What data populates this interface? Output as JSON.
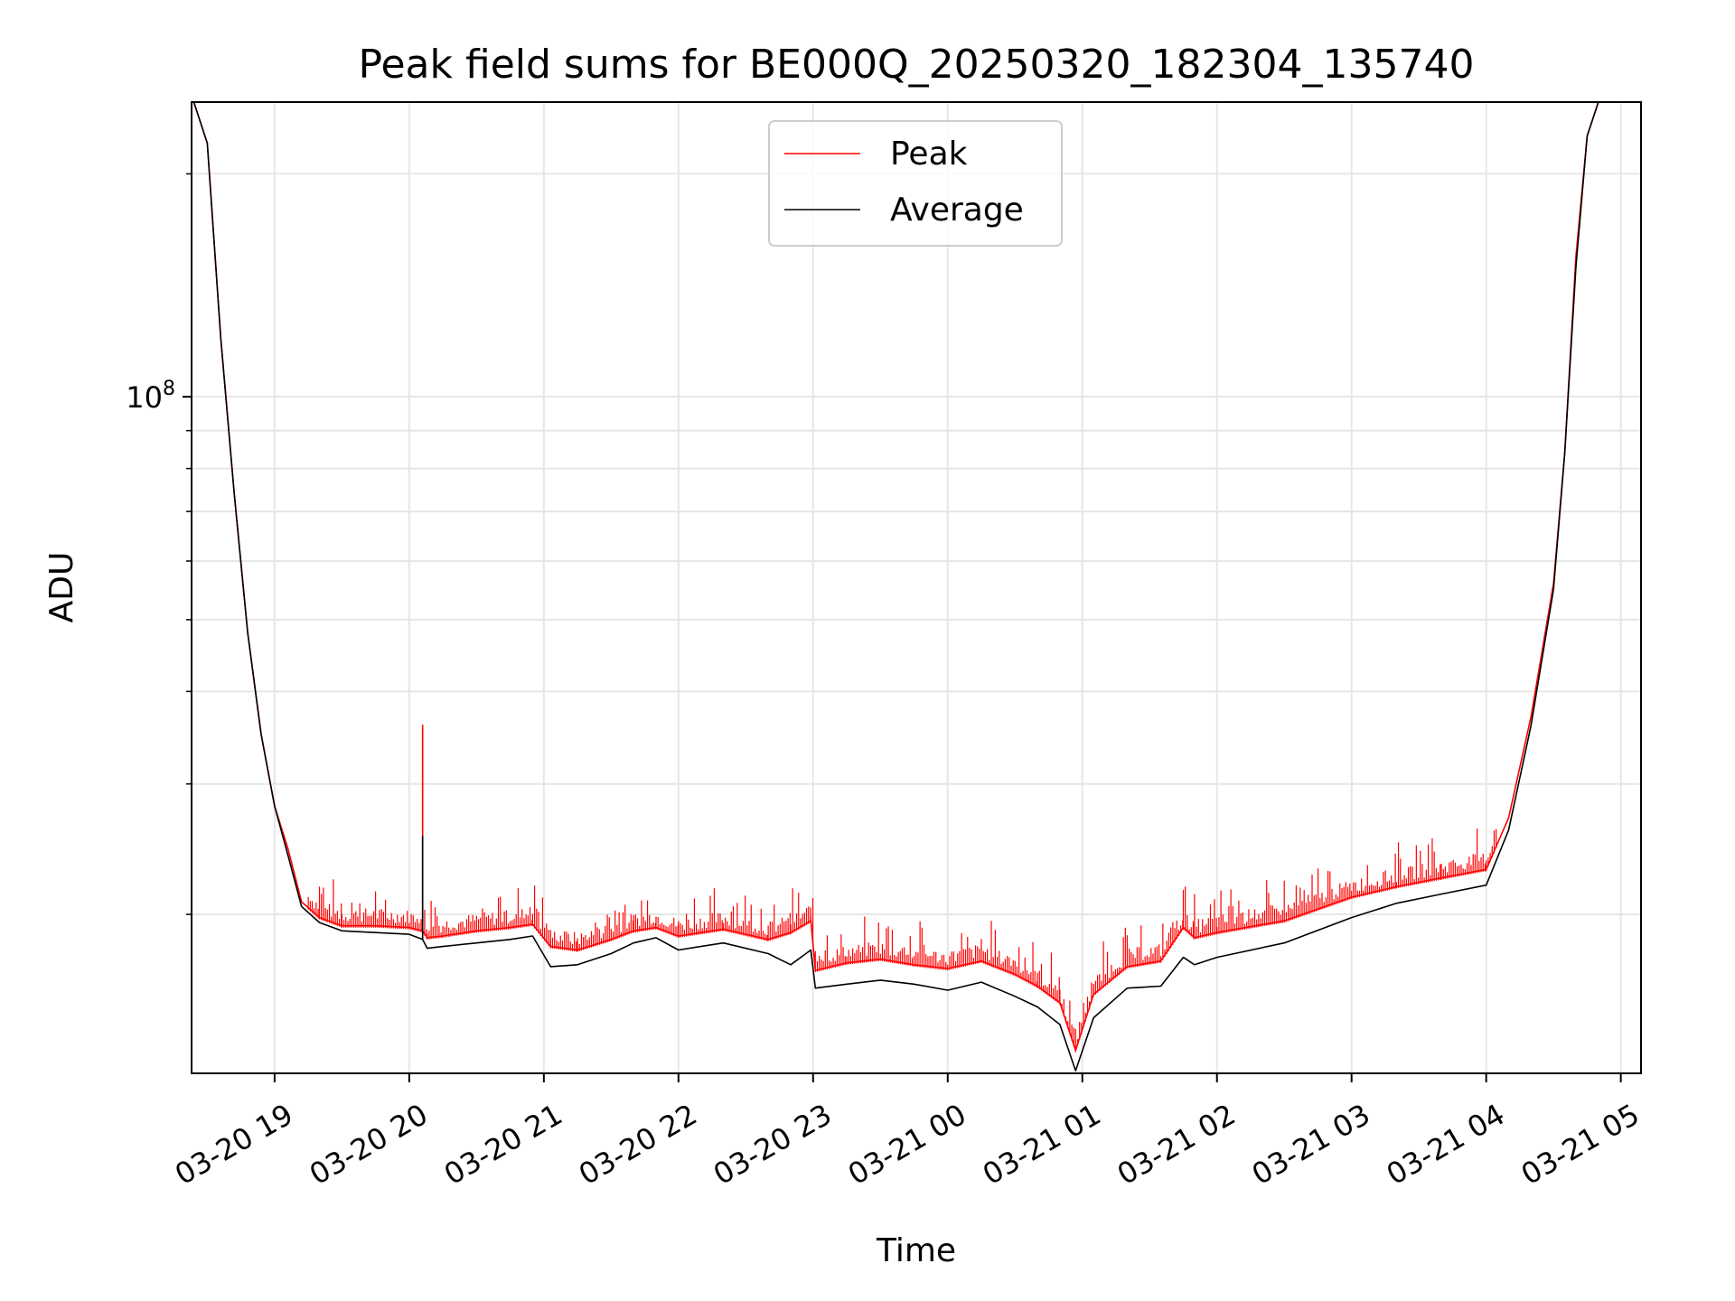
{
  "chart_data": {
    "type": "line",
    "title": "Peak field sums for BE000Q_20250320_182304_135740",
    "xlabel": "Time",
    "ylabel": "ADU",
    "yscale": "log",
    "grid": true,
    "legend_position": "top-center",
    "xlim": [
      "2025-03-20 18:23",
      "2025-03-21 05:09"
    ],
    "ylim": [
      12200000,
      250000000
    ],
    "x_ticks": [
      {
        "value": "2025-03-20 19:00",
        "label": "03-20 19"
      },
      {
        "value": "2025-03-20 20:00",
        "label": "03-20 20"
      },
      {
        "value": "2025-03-20 21:00",
        "label": "03-20 21"
      },
      {
        "value": "2025-03-20 22:00",
        "label": "03-20 22"
      },
      {
        "value": "2025-03-20 23:00",
        "label": "03-20 23"
      },
      {
        "value": "2025-03-21 00:00",
        "label": "03-21 00"
      },
      {
        "value": "2025-03-21 01:00",
        "label": "03-21 01"
      },
      {
        "value": "2025-03-21 02:00",
        "label": "03-21 02"
      },
      {
        "value": "2025-03-21 03:00",
        "label": "03-21 03"
      },
      {
        "value": "2025-03-21 04:00",
        "label": "03-21 04"
      },
      {
        "value": "2025-03-21 05:00",
        "label": "03-21 05"
      }
    ],
    "y_major_ticks": [
      {
        "value": 100000000,
        "base": "10",
        "exponent": "8"
      }
    ],
    "y_minor_ticks": [
      20000000,
      30000000,
      40000000,
      50000000,
      60000000,
      70000000,
      80000000,
      90000000,
      200000000
    ],
    "series": [
      {
        "name": "Peak",
        "color": "#ff0000",
        "noisy_spikes": true,
        "x": [
          "2025-03-20 18:24",
          "2025-03-20 18:30",
          "2025-03-20 18:36",
          "2025-03-20 18:42",
          "2025-03-20 18:48",
          "2025-03-20 18:54",
          "2025-03-20 19:00",
          "2025-03-20 19:06",
          "2025-03-20 19:12",
          "2025-03-20 19:20",
          "2025-03-20 19:30",
          "2025-03-20 19:45",
          "2025-03-20 20:00",
          "2025-03-20 20:06",
          "2025-03-20 20:06",
          "2025-03-20 20:06",
          "2025-03-20 20:08",
          "2025-03-20 20:15",
          "2025-03-20 20:30",
          "2025-03-20 20:45",
          "2025-03-20 20:55",
          "2025-03-20 21:03",
          "2025-03-20 21:15",
          "2025-03-20 21:30",
          "2025-03-20 21:40",
          "2025-03-20 21:50",
          "2025-03-20 22:00",
          "2025-03-20 22:20",
          "2025-03-20 22:40",
          "2025-03-20 22:50",
          "2025-03-20 22:59",
          "2025-03-20 23:01",
          "2025-03-20 23:15",
          "2025-03-20 23:30",
          "2025-03-20 23:45",
          "2025-03-21 00:00",
          "2025-03-21 00:15",
          "2025-03-21 00:30",
          "2025-03-21 00:40",
          "2025-03-21 00:50",
          "2025-03-21 00:57",
          "2025-03-21 01:05",
          "2025-03-21 01:20",
          "2025-03-21 01:35",
          "2025-03-21 01:45",
          "2025-03-21 01:50",
          "2025-03-21 02:00",
          "2025-03-21 02:30",
          "2025-03-21 03:00",
          "2025-03-21 03:20",
          "2025-03-21 03:40",
          "2025-03-21 04:00",
          "2025-03-21 04:10",
          "2025-03-21 04:20",
          "2025-03-21 04:30",
          "2025-03-21 04:35",
          "2025-03-21 04:40",
          "2025-03-21 04:45",
          "2025-03-21 04:50"
        ],
        "y": [
          250000000,
          220000000,
          120000000,
          74000000,
          48000000,
          35000000,
          28000000,
          24500000,
          20800000,
          19800000,
          19300000,
          19300000,
          19200000,
          19000000,
          36000000,
          19000000,
          18600000,
          18700000,
          19000000,
          19200000,
          19400000,
          18100000,
          17900000,
          18500000,
          19000000,
          19200000,
          18700000,
          19100000,
          18500000,
          18900000,
          19600000,
          16800000,
          17200000,
          17400000,
          17100000,
          16900000,
          17300000,
          16600000,
          16000000,
          15200000,
          13100000,
          15600000,
          17000000,
          17300000,
          19200000,
          18600000,
          18900000,
          19600000,
          21100000,
          21800000,
          22400000,
          23000000,
          27000000,
          37000000,
          56000000,
          84000000,
          155000000,
          225000000,
          250000000
        ]
      },
      {
        "name": "Average",
        "color": "#000000",
        "x": [
          "2025-03-20 18:24",
          "2025-03-20 18:30",
          "2025-03-20 18:36",
          "2025-03-20 18:42",
          "2025-03-20 18:48",
          "2025-03-20 18:54",
          "2025-03-20 19:00",
          "2025-03-20 19:06",
          "2025-03-20 19:12",
          "2025-03-20 19:20",
          "2025-03-20 19:30",
          "2025-03-20 19:45",
          "2025-03-20 20:00",
          "2025-03-20 20:06",
          "2025-03-20 20:06",
          "2025-03-20 20:06",
          "2025-03-20 20:08",
          "2025-03-20 20:15",
          "2025-03-20 20:30",
          "2025-03-20 20:45",
          "2025-03-20 20:55",
          "2025-03-20 21:03",
          "2025-03-20 21:15",
          "2025-03-20 21:30",
          "2025-03-20 21:40",
          "2025-03-20 21:50",
          "2025-03-20 22:00",
          "2025-03-20 22:20",
          "2025-03-20 22:40",
          "2025-03-20 22:50",
          "2025-03-20 22:59",
          "2025-03-20 23:01",
          "2025-03-20 23:15",
          "2025-03-20 23:30",
          "2025-03-20 23:45",
          "2025-03-21 00:00",
          "2025-03-21 00:15",
          "2025-03-21 00:30",
          "2025-03-21 00:40",
          "2025-03-21 00:50",
          "2025-03-21 00:57",
          "2025-03-21 01:05",
          "2025-03-21 01:20",
          "2025-03-21 01:35",
          "2025-03-21 01:45",
          "2025-03-21 01:50",
          "2025-03-21 02:00",
          "2025-03-21 02:30",
          "2025-03-21 03:00",
          "2025-03-21 03:20",
          "2025-03-21 03:40",
          "2025-03-21 04:00",
          "2025-03-21 04:10",
          "2025-03-21 04:20",
          "2025-03-21 04:30",
          "2025-03-21 04:35",
          "2025-03-21 04:40",
          "2025-03-21 04:45",
          "2025-03-21 04:50"
        ],
        "y": [
          250000000,
          220000000,
          120000000,
          74000000,
          48000000,
          35000000,
          28000000,
          24000000,
          20500000,
          19500000,
          19000000,
          18900000,
          18800000,
          18500000,
          25500000,
          18500000,
          18000000,
          18100000,
          18300000,
          18500000,
          18700000,
          17000000,
          17100000,
          17700000,
          18300000,
          18600000,
          17900000,
          18300000,
          17700000,
          17100000,
          17900000,
          15900000,
          16100000,
          16300000,
          16100000,
          15800000,
          16200000,
          15500000,
          15000000,
          14200000,
          12300000,
          14500000,
          15900000,
          16000000,
          17500000,
          17100000,
          17500000,
          18300000,
          19800000,
          20700000,
          21300000,
          21900000,
          26000000,
          36000000,
          55000000,
          84000000,
          150000000,
          225000000,
          250000000
        ]
      }
    ]
  }
}
